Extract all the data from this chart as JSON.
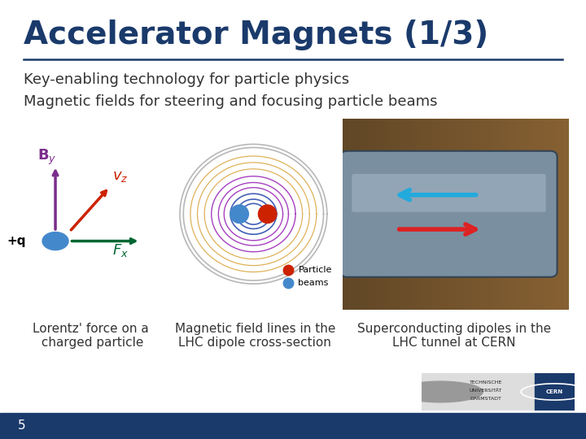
{
  "title": "Accelerator Magnets (1/3)",
  "subtitle_line1": "Key-enabling technology for particle physics",
  "subtitle_line2": "Magnetic fields for steering and focusing particle beams",
  "title_color": "#1a3a6b",
  "title_fontsize": 28,
  "subtitle_fontsize": 13,
  "subtitle_color": "#333333",
  "background_color": "#ffffff",
  "separator_color": "#1a3a6b",
  "bottom_bar_color": "#1a3a6b",
  "caption1": "Lorentz' force on a\n charged particle",
  "caption2": "Magnetic field lines in the\nLHC dipole cross-section",
  "caption3": "Superconducting dipoles in the\nLHC tunnel at CERN",
  "caption_fontsize": 11,
  "caption_color": "#333333",
  "slide_number": "5",
  "particle_color": "#4488cc",
  "arrow_purple": "#7b2d8b",
  "arrow_red": "#cc2200",
  "arrow_green": "#006633"
}
